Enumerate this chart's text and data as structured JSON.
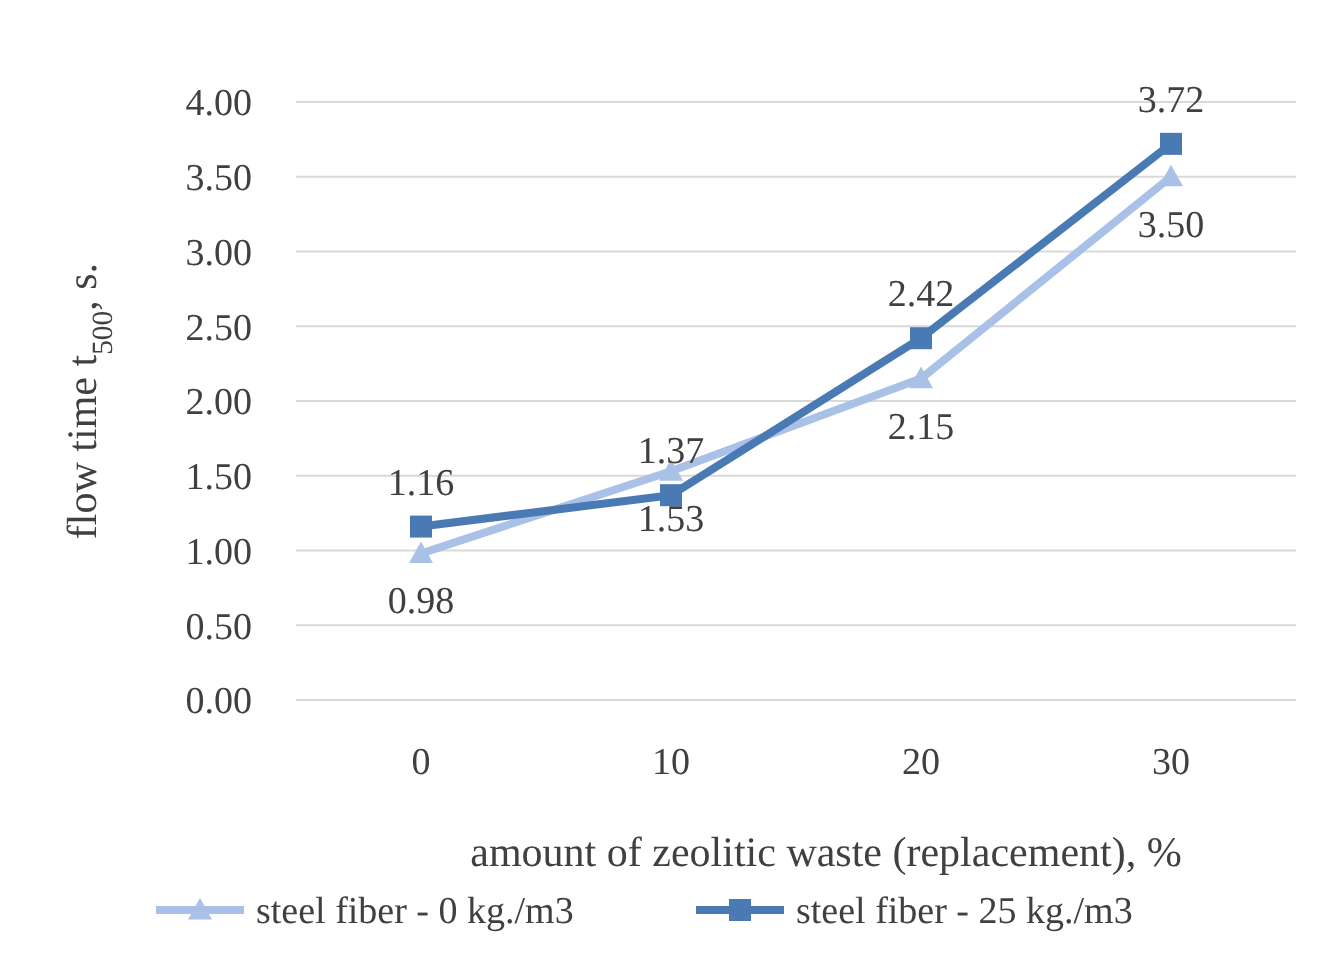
{
  "chart_data": {
    "type": "line",
    "xlabel": "amount of zeolitic waste (replacement), %",
    "ylabel": "flow time t$_{500}$, s.",
    "categories": [
      "0",
      "10",
      "20",
      "30"
    ],
    "series": [
      {
        "name": "steel fiber - 0 kg./m3",
        "color": "#a9c1e6",
        "marker": "triangle",
        "values": [
          0.98,
          1.53,
          2.15,
          3.5
        ],
        "value_labels": [
          "0.98",
          "1.53",
          "2.15",
          "3.50"
        ]
      },
      {
        "name": "steel fiber - 25 kg./m3",
        "color": "#4a7ab4",
        "marker": "square",
        "values": [
          1.16,
          1.37,
          2.42,
          3.72
        ],
        "value_labels": [
          "1.16",
          "1.37",
          "2.42",
          "3.72"
        ]
      }
    ],
    "ylim": [
      0,
      4
    ],
    "yticks": [
      {
        "value": 0,
        "label": "0.00"
      },
      {
        "value": 0.5,
        "label": "0.50"
      },
      {
        "value": 1,
        "label": "1.00"
      },
      {
        "value": 1.5,
        "label": "1.50"
      },
      {
        "value": 2,
        "label": "2.00"
      },
      {
        "value": 2.5,
        "label": "2.50"
      },
      {
        "value": 3,
        "label": "3.00"
      },
      {
        "value": 3.5,
        "label": "3.50"
      },
      {
        "value": 4,
        "label": "4.00"
      }
    ],
    "grid": "y",
    "legend": "bottom"
  }
}
